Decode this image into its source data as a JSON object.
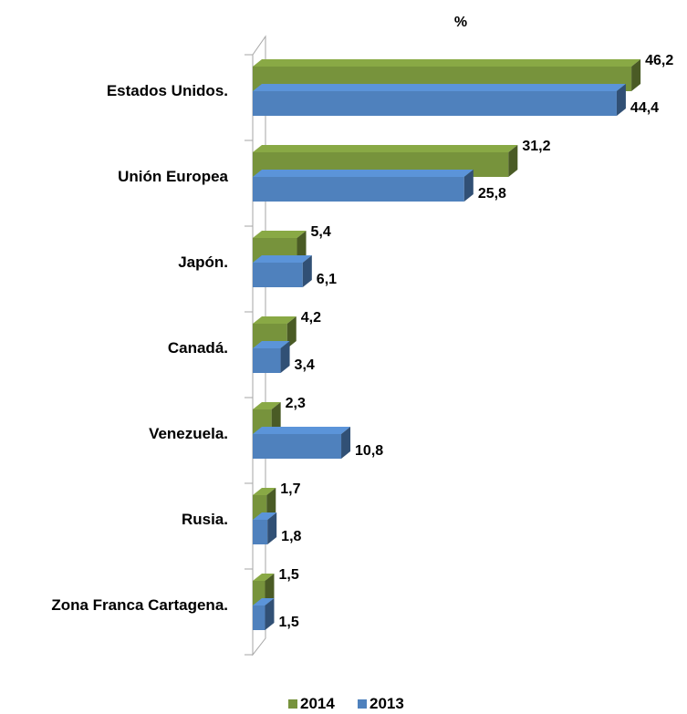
{
  "chart_data": {
    "type": "bar",
    "orientation": "horizontal",
    "style": "3d-clustered",
    "unit": "%",
    "categories": [
      "Estados Unidos.",
      "Unión Europea",
      "Japón.",
      "Canadá.",
      "Venezuela.",
      "Rusia.",
      "Zona Franca Cartagena."
    ],
    "series": [
      {
        "name": "2014",
        "color": "#77933C",
        "values": [
          46.2,
          31.2,
          5.4,
          4.2,
          2.3,
          1.7,
          1.5
        ],
        "labels": [
          "46,2",
          "31,2",
          "5,4",
          "4,2",
          "2,3",
          "1,7",
          "1,5"
        ]
      },
      {
        "name": "2013",
        "color": "#4F81BD",
        "values": [
          44.4,
          25.8,
          6.1,
          3.4,
          10.8,
          1.8,
          1.5
        ],
        "labels": [
          "44,4",
          "25,8",
          "6,1",
          "3,4",
          "10,8",
          "1,8",
          "1,5"
        ]
      }
    ],
    "xlim": [
      0,
      50
    ],
    "grid": false,
    "legend_position": "bottom"
  }
}
